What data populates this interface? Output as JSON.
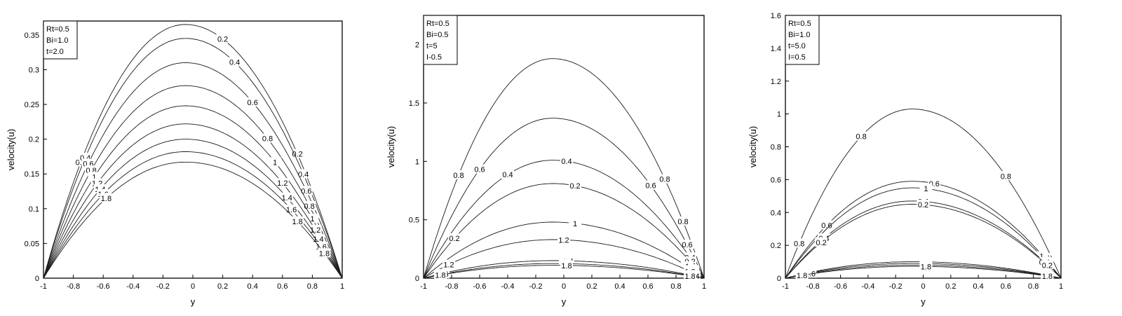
{
  "chart_data": [
    {
      "type": "line",
      "xlabel": "y",
      "ylabel": "velocity(u)",
      "xlim": [
        -1,
        1
      ],
      "ylim": [
        0,
        0.37
      ],
      "xticks": [
        "-1",
        "-0.8",
        "-0.6",
        "-0.4",
        "-0.2",
        "0",
        "0.2",
        "0.4",
        "0.6",
        "0.8",
        "1"
      ],
      "yticks": [
        "0",
        "0.05",
        "0.1",
        "0.15",
        "0.2",
        "0.25",
        "0.3",
        "0.35"
      ],
      "legend": [
        "Rt=0.5",
        "Bi=1.0",
        "t=2.0"
      ],
      "legend_position": "top-left",
      "peak_x": -0.05,
      "series": [
        {
          "label": "0.2",
          "peak": 0.365
        },
        {
          "label": "0.4",
          "peak": 0.345
        },
        {
          "label": "0.6",
          "peak": 0.31
        },
        {
          "label": "0.8",
          "peak": 0.277
        },
        {
          "label": "1",
          "peak": 0.248
        },
        {
          "label": "1.2",
          "peak": 0.222
        },
        {
          "label": "1.4",
          "peak": 0.2
        },
        {
          "label": "1.6",
          "peak": 0.182
        },
        {
          "label": "1.8",
          "peak": 0.167
        }
      ]
    },
    {
      "type": "line",
      "xlabel": "y",
      "ylabel": "velocity(u)",
      "xlim": [
        -1,
        1
      ],
      "ylim": [
        0,
        2.25
      ],
      "xticks": [
        "-1",
        "-0.8",
        "-0.6",
        "-0.4",
        "-0.2",
        "0",
        "0.2",
        "0.4",
        "0.6",
        "0.8",
        "1"
      ],
      "yticks": [
        "0",
        "0.5",
        "1",
        "1.5",
        "2"
      ],
      "legend": [
        "Rt=0.5",
        "Bi=0.5",
        "t=5",
        "I-0.5"
      ],
      "legend_position": "top-left",
      "peak_x": -0.08,
      "series": [
        {
          "label": "0.8",
          "peak": 1.88
        },
        {
          "label": "0.6",
          "peak": 1.37
        },
        {
          "label": "0.4",
          "peak": 1.01
        },
        {
          "label": "0.2",
          "peak": 0.81
        },
        {
          "label": "1",
          "peak": 0.48
        },
        {
          "label": "1.2",
          "peak": 0.33
        },
        {
          "label": "1.4",
          "peak": 0.15
        },
        {
          "label": "1.6",
          "peak": 0.125
        },
        {
          "label": "1.8",
          "peak": 0.11
        }
      ]
    },
    {
      "type": "line",
      "xlabel": "y",
      "ylabel": "velocity(u)",
      "xlim": [
        -1,
        1
      ],
      "ylim": [
        0,
        1.6
      ],
      "xticks": [
        "-1",
        "-0.8",
        "-0.6",
        "-0.4",
        "-0.2",
        "0",
        "0.2",
        "0.4",
        "0.6",
        "0.8",
        "1"
      ],
      "yticks": [
        "0",
        "0.2",
        "0.4",
        "0.6",
        "0.8",
        "1",
        "1.2",
        "1.4",
        "1.6"
      ],
      "legend": [
        "Rt=0.5",
        "Bi=1.0",
        "t=5.0",
        "I=0.5"
      ],
      "legend_position": "top-left",
      "peak_x": -0.08,
      "series": [
        {
          "label": "0.8",
          "peak": 1.03
        },
        {
          "label": "0.6",
          "peak": 0.59
        },
        {
          "label": "1",
          "peak": 0.55
        },
        {
          "label": "0.4",
          "peak": 0.47
        },
        {
          "label": "0.2",
          "peak": 0.45
        },
        {
          "label": "1.2",
          "peak": 0.1
        },
        {
          "label": "1.4",
          "peak": 0.09
        },
        {
          "label": "1.6",
          "peak": 0.08
        },
        {
          "label": "1.8",
          "peak": 0.072
        }
      ]
    }
  ]
}
